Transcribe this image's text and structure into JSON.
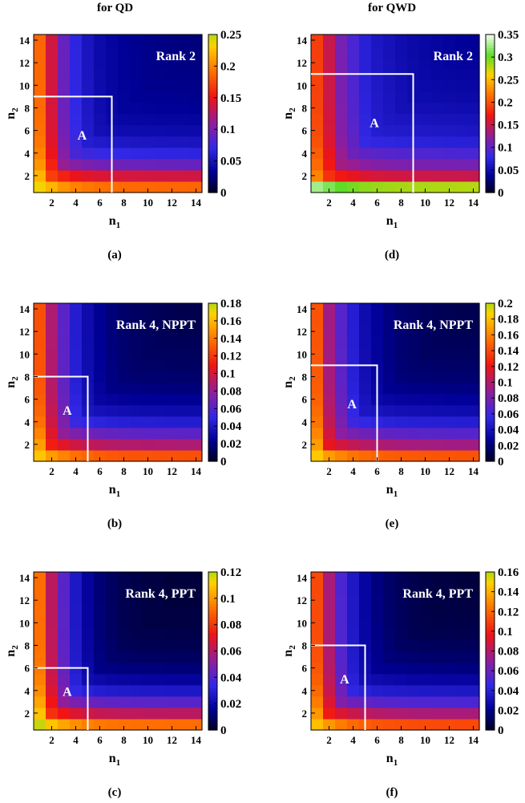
{
  "column_titles": [
    "for QD",
    "for QWD"
  ],
  "chart_data": [
    {
      "type": "heatmap",
      "panel": "(a)",
      "label": "Rank 2",
      "region_label": "A",
      "region_n1": 7,
      "region_n2": 9,
      "xlabel": "n",
      "xlabel_sub": "1",
      "ylabel": "n",
      "ylabel_sub": "2",
      "x_ticks": [
        "2",
        "4",
        "6",
        "8",
        "10",
        "12",
        "14"
      ],
      "y_ticks": [
        "2",
        "4",
        "6",
        "8",
        "10",
        "12",
        "14"
      ],
      "cbar_max": 0.25,
      "cbar_ticks": [
        "0",
        "0.05",
        "0.1",
        "0.15",
        "0.2",
        "0.25"
      ],
      "cbar_values": [
        0,
        0.05,
        0.1,
        0.15,
        0.2,
        0.25
      ],
      "row_profile": [
        0.18,
        0.13,
        0.085,
        0.06,
        0.045,
        0.035,
        0.03,
        0.026,
        0.024,
        0.022,
        0.021,
        0.02,
        0.019,
        0.018
      ],
      "col_profile": [
        0.18,
        0.13,
        0.085,
        0.06,
        0.045,
        0.035,
        0.03,
        0.026,
        0.024,
        0.022,
        0.021,
        0.02,
        0.019,
        0.018
      ],
      "combine": 1.0
    },
    {
      "type": "heatmap",
      "panel": "(b)",
      "label": "Rank 4, NPPT",
      "region_label": "A",
      "region_n1": 5,
      "region_n2": 8,
      "xlabel": "n",
      "xlabel_sub": "1",
      "ylabel": "n",
      "ylabel_sub": "2",
      "x_ticks": [
        "2",
        "4",
        "6",
        "8",
        "10",
        "12",
        "14"
      ],
      "y_ticks": [
        "2",
        "4",
        "6",
        "8",
        "10",
        "12",
        "14"
      ],
      "cbar_max": 0.18,
      "cbar_ticks": [
        "0",
        "0.02",
        "0.04",
        "0.06",
        "0.08",
        "0.1",
        "0.12",
        "0.14",
        "0.16",
        "0.18"
      ],
      "cbar_values": [
        0,
        0.02,
        0.04,
        0.06,
        0.08,
        0.1,
        0.12,
        0.14,
        0.16,
        0.18
      ],
      "row_profile": [
        0.125,
        0.085,
        0.06,
        0.04,
        0.028,
        0.02,
        0.015,
        0.012,
        0.01,
        0.009,
        0.008,
        0.007,
        0.006,
        0.006
      ],
      "col_profile": [
        0.125,
        0.085,
        0.06,
        0.04,
        0.028,
        0.02,
        0.015,
        0.012,
        0.01,
        0.009,
        0.008,
        0.007,
        0.006,
        0.006
      ],
      "combine": 1.0
    },
    {
      "type": "heatmap",
      "panel": "(c)",
      "label": "Rank 4, PPT",
      "region_label": "A",
      "region_n1": 5,
      "region_n2": 6,
      "xlabel": "n",
      "xlabel_sub": "1",
      "ylabel": "n",
      "ylabel_sub": "2",
      "x_ticks": [
        "2",
        "4",
        "6",
        "8",
        "10",
        "12",
        "14"
      ],
      "y_ticks": [
        "2",
        "4",
        "6",
        "8",
        "10",
        "12",
        "14"
      ],
      "cbar_max": 0.12,
      "cbar_ticks": [
        "0",
        "0.02",
        "0.04",
        "0.06",
        "0.08",
        "0.1",
        "0.12"
      ],
      "cbar_values": [
        0,
        0.02,
        0.04,
        0.06,
        0.08,
        0.1,
        0.12
      ],
      "row_profile": [
        0.09,
        0.06,
        0.04,
        0.025,
        0.016,
        0.01,
        0.007,
        0.005,
        0.004,
        0.003,
        0.003,
        0.002,
        0.002,
        0.002
      ],
      "col_profile": [
        0.09,
        0.06,
        0.04,
        0.025,
        0.016,
        0.01,
        0.007,
        0.005,
        0.004,
        0.003,
        0.003,
        0.002,
        0.002,
        0.002
      ],
      "combine": 1.0
    },
    {
      "type": "heatmap",
      "panel": "(d)",
      "label": "Rank 2",
      "region_label": "A",
      "region_n1": 9,
      "region_n2": 11,
      "xlabel": "n",
      "xlabel_sub": "1",
      "ylabel": "n",
      "ylabel_sub": "2",
      "x_ticks": [
        "2",
        "4",
        "6",
        "8",
        "10",
        "12",
        "14"
      ],
      "y_ticks": [
        "2",
        "4",
        "6",
        "8",
        "10",
        "12",
        "14"
      ],
      "cbar_max": 0.35,
      "cbar_ticks": [
        "0",
        "0.05",
        "0.1",
        "0.15",
        "0.2",
        "0.25",
        "0.3",
        "0.35"
      ],
      "cbar_values": [
        0,
        0.05,
        0.1,
        0.15,
        0.2,
        0.25,
        0.3,
        0.35
      ],
      "row_profile": [
        0.27,
        0.14,
        0.1,
        0.08,
        0.06,
        0.05,
        0.045,
        0.04,
        0.036,
        0.034,
        0.032,
        0.03,
        0.028,
        0.027
      ],
      "col_profile": [
        0.18,
        0.14,
        0.1,
        0.08,
        0.06,
        0.05,
        0.045,
        0.04,
        0.036,
        0.034,
        0.032,
        0.03,
        0.028,
        0.027
      ],
      "combine": 1.0
    },
    {
      "type": "heatmap",
      "panel": "(e)",
      "label": "Rank 4, NPPT",
      "region_label": "A",
      "region_n1": 6,
      "region_n2": 9,
      "xlabel": "n",
      "xlabel_sub": "1",
      "ylabel": "n",
      "ylabel_sub": "2",
      "x_ticks": [
        "2",
        "4",
        "6",
        "8",
        "10",
        "12",
        "14"
      ],
      "y_ticks": [
        "2",
        "4",
        "6",
        "8",
        "10",
        "12",
        "14"
      ],
      "cbar_max": 0.2,
      "cbar_ticks": [
        "0",
        "0.02",
        "0.04",
        "0.06",
        "0.08",
        "0.1",
        "0.12",
        "0.14",
        "0.16",
        "0.18",
        "0.2"
      ],
      "cbar_values": [
        0,
        0.02,
        0.04,
        0.06,
        0.08,
        0.1,
        0.12,
        0.14,
        0.16,
        0.18,
        0.2
      ],
      "row_profile": [
        0.14,
        0.09,
        0.065,
        0.045,
        0.032,
        0.024,
        0.018,
        0.014,
        0.012,
        0.01,
        0.009,
        0.008,
        0.007,
        0.007
      ],
      "col_profile": [
        0.14,
        0.09,
        0.065,
        0.045,
        0.032,
        0.024,
        0.018,
        0.014,
        0.012,
        0.01,
        0.009,
        0.008,
        0.007,
        0.007
      ],
      "combine": 1.0
    },
    {
      "type": "heatmap",
      "panel": "(f)",
      "label": "Rank 4, PPT",
      "region_label": "A",
      "region_n1": 5,
      "region_n2": 8,
      "xlabel": "n",
      "xlabel_sub": "1",
      "ylabel": "n",
      "ylabel_sub": "2",
      "x_ticks": [
        "2",
        "4",
        "6",
        "8",
        "10",
        "12",
        "14"
      ],
      "y_ticks": [
        "2",
        "4",
        "6",
        "8",
        "10",
        "12",
        "14"
      ],
      "cbar_max": 0.16,
      "cbar_ticks": [
        "0",
        "0.02",
        "0.04",
        "0.06",
        "0.08",
        "0.1",
        "0.12",
        "0.14",
        "0.16"
      ],
      "cbar_values": [
        0,
        0.02,
        0.04,
        0.06,
        0.08,
        0.1,
        0.12,
        0.14,
        0.16
      ],
      "row_profile": [
        0.11,
        0.075,
        0.05,
        0.033,
        0.022,
        0.015,
        0.011,
        0.008,
        0.006,
        0.005,
        0.004,
        0.004,
        0.003,
        0.003
      ],
      "col_profile": [
        0.11,
        0.075,
        0.05,
        0.033,
        0.022,
        0.015,
        0.011,
        0.008,
        0.006,
        0.005,
        0.004,
        0.004,
        0.003,
        0.003
      ],
      "combine": 1.0
    }
  ]
}
